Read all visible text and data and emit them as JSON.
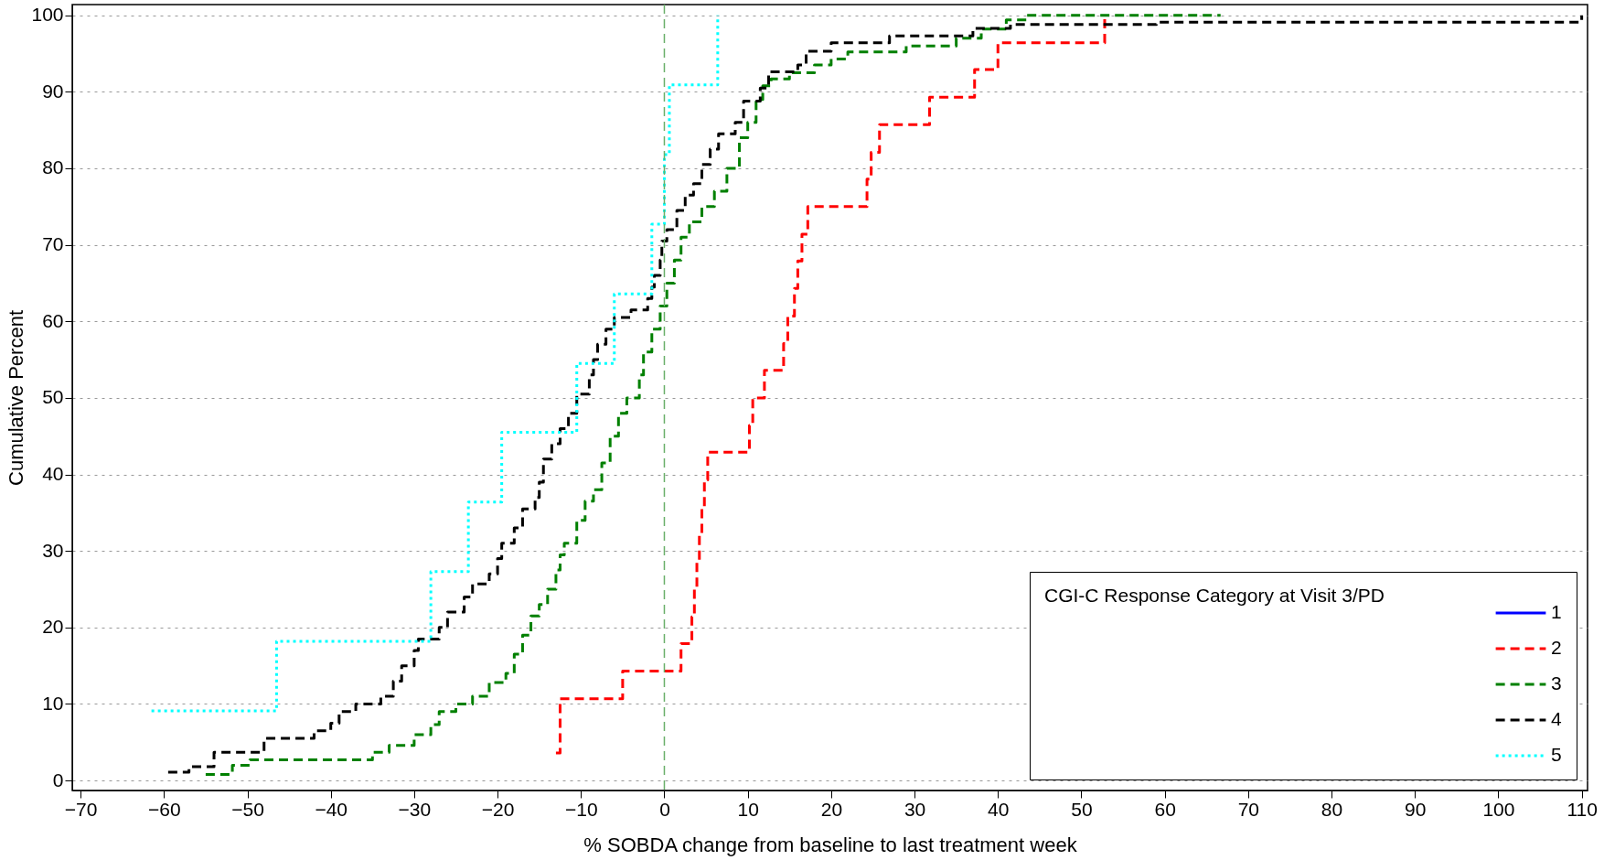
{
  "chart_data": {
    "type": "step",
    "xlabel": "% SOBDA change from baseline to last treatment week",
    "ylabel": "Cumulative Percent",
    "legend_title": "CGI-C Response Category at Visit 3/PD",
    "legend": "bottom right",
    "grid": "y",
    "xlim": [
      -71,
      110.7
    ],
    "ylim": [
      -1.3,
      101.4
    ],
    "xticks": [
      -70,
      -60,
      -50,
      -40,
      -30,
      -20,
      -10,
      0,
      10,
      20,
      30,
      40,
      50,
      60,
      70,
      80,
      90,
      100,
      110
    ],
    "yticks": [
      0,
      10,
      20,
      30,
      40,
      50,
      60,
      70,
      80,
      90,
      100
    ],
    "ref_lines": [
      {
        "axis": "x",
        "value": 0,
        "color": "#6aaf6a",
        "line_style": "dashed"
      }
    ],
    "series": [
      {
        "name": "1",
        "color": "#0000ff",
        "line_style": "solid"
      },
      {
        "name": "2",
        "color": "#ff0000",
        "line_style": "dashed",
        "x": [
          -13,
          -12.5,
          -5,
          2,
          3.3,
          3.6,
          3.9,
          4.2,
          4.5,
          4.8,
          5.2,
          10.2,
          10.6,
          12,
          14.3,
          14.8,
          15.6,
          16,
          16.5,
          17.2,
          24.3,
          24.8,
          25.8,
          31.8,
          37.2,
          40,
          52.8
        ],
        "values": [
          3.6,
          10.7,
          14.3,
          17.9,
          21.4,
          25,
          28.6,
          32.1,
          35.7,
          39.3,
          42.9,
          46.4,
          50,
          53.6,
          57.1,
          60.7,
          64.3,
          67.9,
          71.4,
          75,
          78.6,
          82.1,
          85.7,
          89.3,
          92.9,
          96.4,
          100
        ]
      },
      {
        "name": "3",
        "color": "#008000",
        "line_style": "dashed",
        "x": [
          -55,
          -51.8,
          -49.7,
          -35,
          -33,
          -30,
          -28,
          -27,
          -25,
          -23,
          -21,
          -19,
          -18,
          -17,
          -16,
          -15,
          -14,
          -13,
          -12.5,
          -12,
          -10.5,
          -9.5,
          -8.5,
          -7.5,
          -6.5,
          -5.5,
          -4.5,
          -3,
          -2.5,
          -1.5,
          -0.5,
          0.3,
          1.2,
          2,
          3,
          4.5,
          6,
          7.5,
          9,
          10,
          11,
          11.8,
          12.8,
          15,
          18,
          20,
          22,
          29,
          35,
          38,
          41,
          43.5,
          66.7
        ],
        "values": [
          0.8,
          2,
          2.7,
          3.7,
          4.6,
          6,
          7.3,
          9,
          10,
          11,
          12.8,
          14,
          16.5,
          19,
          21.5,
          23,
          25,
          27.5,
          29.5,
          31,
          34,
          36.5,
          38,
          41.5,
          45,
          48,
          50,
          53,
          56,
          59,
          62,
          65,
          68,
          71,
          73,
          75,
          77,
          80,
          84,
          86,
          89,
          90.8,
          91.7,
          92.5,
          93.5,
          94.3,
          95.2,
          96,
          97,
          98.2,
          99.4,
          100,
          100
        ]
      },
      {
        "name": "4",
        "color": "#000000",
        "line_style": "dashed",
        "x": [
          -59.5,
          -57,
          -54,
          -48,
          -42,
          -40,
          -39,
          -37,
          -34,
          -32.5,
          -31.5,
          -30,
          -29.5,
          -27,
          -26,
          -24,
          -23,
          -21,
          -20,
          -19.5,
          -18,
          -17,
          -15.5,
          -15,
          -14.5,
          -13.5,
          -12.5,
          -11.5,
          -10.5,
          -9,
          -8.5,
          -8,
          -7,
          -6,
          -4,
          -2,
          -1.5,
          -1.2,
          -0.5,
          -0.3,
          0.3,
          1.5,
          2.5,
          3.5,
          4.5,
          5.5,
          6.5,
          8.5,
          9.5,
          11.5,
          12.5,
          16,
          17,
          20,
          27,
          37,
          41.5,
          59,
          110
        ],
        "values": [
          1.1,
          1.8,
          3.7,
          5.5,
          6.5,
          7.5,
          9,
          10,
          11,
          13,
          15,
          17,
          18.5,
          20,
          22,
          24,
          25.7,
          27,
          29,
          31,
          33,
          35.5,
          37,
          39,
          42,
          44,
          46,
          48,
          50.5,
          53,
          55,
          57,
          59,
          60.5,
          61.5,
          63,
          64.5,
          66,
          68,
          70.5,
          72,
          74.5,
          76.5,
          78,
          80.5,
          82.5,
          84.5,
          86,
          88.8,
          90.5,
          92.6,
          93.5,
          95.3,
          96.4,
          97.3,
          98.3,
          98.8,
          99.1,
          100
        ]
      },
      {
        "name": "5",
        "color": "#00ffff",
        "line_style": "dotted",
        "x": [
          -61.5,
          -46.5,
          -28,
          -23.5,
          -19.5,
          -10.5,
          -6,
          -1.5,
          0,
          0.6,
          6.4
        ],
        "values": [
          9.1,
          18.2,
          27.3,
          36.4,
          45.5,
          54.5,
          63.6,
          72.7,
          81.8,
          90.9,
          100
        ]
      }
    ]
  }
}
